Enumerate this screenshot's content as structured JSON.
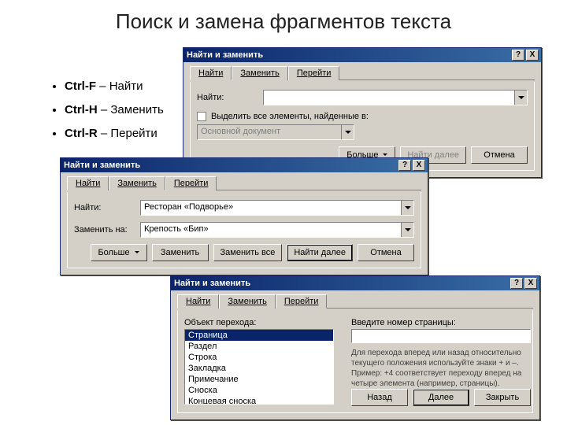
{
  "slide": {
    "title": "Поиск и замена фрагментов текста"
  },
  "shortcuts": [
    {
      "key": "Ctrl-F",
      "desc": "Найти"
    },
    {
      "key": "Ctrl-H",
      "desc": "Заменить"
    },
    {
      "key": "Ctrl-R",
      "desc": "Перейти"
    }
  ],
  "dialog": {
    "title": "Найти и заменить",
    "help_glyph": "?",
    "close_glyph": "X",
    "tabs": {
      "find": "Найти",
      "replace": "Заменить",
      "goto": "Перейти"
    }
  },
  "d1": {
    "find_label": "Найти:",
    "find_value": "",
    "highlight_label": "Выделить все элементы, найденные в:",
    "scope_value": "Основной документ",
    "more": "Больше",
    "find_next": "Найти далее",
    "cancel": "Отмена"
  },
  "d2": {
    "find_label": "Найти:",
    "find_value": "Ресторан «Подворье»",
    "replace_label": "Заменить на:",
    "replace_value": "Крепость «Бип»",
    "more": "Больше",
    "replace": "Заменить",
    "replace_all": "Заменить все",
    "find_next": "Найти далее",
    "cancel": "Отмена"
  },
  "d3": {
    "object_label": "Объект перехода:",
    "list": [
      "Страница",
      "Раздел",
      "Строка",
      "Закладка",
      "Примечание",
      "Сноска",
      "Концевая сноска"
    ],
    "selected_index": 0,
    "input_label": "Введите номер страницы:",
    "input_value": "",
    "hint": "Для перехода вперед или назад относительно текущего положения используйте знаки + и –. Пример: +4 соответствует переходу вперед на четыре элемента (например, страницы).",
    "back": "Назад",
    "next": "Далее",
    "close": "Закрыть"
  },
  "colors": {
    "titlebar_start": "#0a246a",
    "titlebar_end": "#3a6ea5",
    "face": "#d4d0c8"
  }
}
